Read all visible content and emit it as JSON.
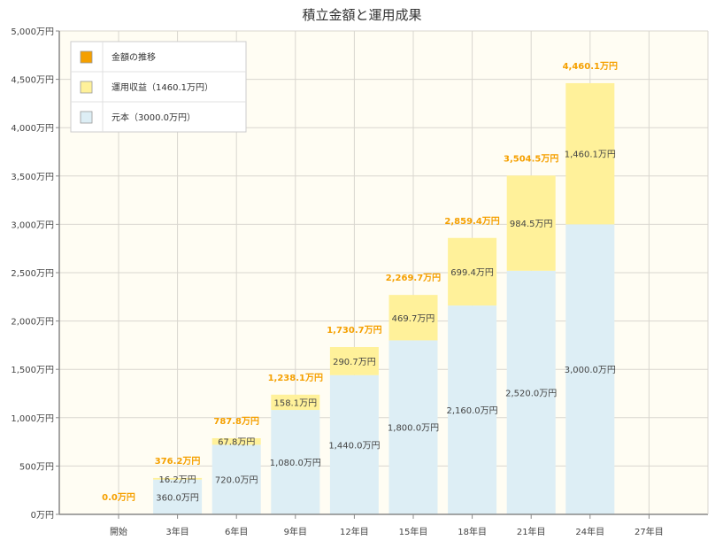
{
  "chart_data": {
    "type": "bar",
    "title": "積立金額と運用成果",
    "categories": [
      "開始",
      "3年目",
      "6年目",
      "9年目",
      "12年目",
      "15年目",
      "18年目",
      "21年目",
      "24年目",
      "27年目"
    ],
    "series": [
      {
        "name": "元本（3000.0万円）",
        "color": "#ddeef5",
        "values": [
          0,
          360.0,
          720.0,
          1080.0,
          1440.0,
          1800.0,
          2160.0,
          2520.0,
          3000.0,
          null
        ],
        "labels": [
          "",
          "360.0万円",
          "720.0万円",
          "1,080.0万円",
          "1,440.0万円",
          "1,800.0万円",
          "2,160.0万円",
          "2,520.0万円",
          "3,000.0万円",
          ""
        ]
      },
      {
        "name": "運用収益（1460.1万円）",
        "color": "#fff19a",
        "values": [
          0,
          16.2,
          67.8,
          158.1,
          290.7,
          469.7,
          699.4,
          984.5,
          1460.1,
          null
        ],
        "labels": [
          "",
          "16.2万円",
          "67.8万円",
          "158.1万円",
          "290.7万円",
          "469.7万円",
          "699.4万円",
          "984.5万円",
          "1,460.1万円",
          ""
        ]
      }
    ],
    "totals": {
      "name": "金額の推移",
      "color": "#f5a000",
      "values": [
        0.0,
        376.2,
        787.8,
        1238.1,
        1730.7,
        2269.7,
        2859.4,
        3504.5,
        4460.1,
        null
      ],
      "labels": [
        "0.0万円",
        "376.2万円",
        "787.8万円",
        "1,238.1万円",
        "1,730.7万円",
        "2,269.7万円",
        "2,859.4万円",
        "3,504.5万円",
        "4,460.1万円",
        ""
      ]
    },
    "ylim": [
      0,
      5000
    ],
    "yticks": [
      0,
      500,
      1000,
      1500,
      2000,
      2500,
      3000,
      3500,
      4000,
      4500,
      5000
    ],
    "ytick_labels": [
      "0万円",
      "500万円",
      "1,000万円",
      "1,500万円",
      "2,000万円",
      "2,500万円",
      "3,000万円",
      "3,500万円",
      "4,000万円",
      "4,500万円",
      "5,000万円"
    ],
    "grid": true,
    "legend_position": "top-left",
    "colors": {
      "plot_background": "#fffdf3",
      "grid": "#d9d6cf",
      "axis": "#888888",
      "label_text": "#444444",
      "total_text": "#f5a000"
    }
  }
}
